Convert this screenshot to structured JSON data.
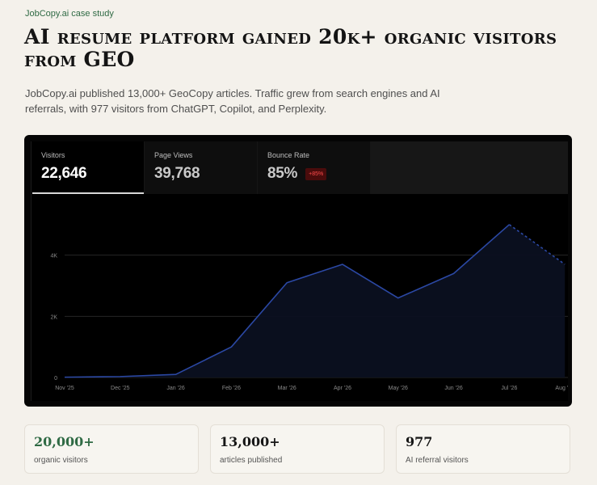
{
  "header": {
    "eyebrow": "JobCopy.ai case study",
    "title": "AI resume platform gained 20k+ organic visitors from GEO",
    "lede": "JobCopy.ai published 13,000+ GeoCopy articles. Traffic grew from search engines and AI referrals, with 977 visitors from ChatGPT, Copilot, and Perplexity."
  },
  "metrics": [
    {
      "label": "Visitors",
      "value": "22,646"
    },
    {
      "label": "Page Views",
      "value": "39,768"
    },
    {
      "label": "Bounce Rate",
      "value": "85%",
      "badge": "+85%"
    }
  ],
  "colors": {
    "accent": "#2f6a44",
    "line": "#2b48a4",
    "badge_text": "#ff4d4d",
    "badge_bg": "#4a0c0c"
  },
  "chart_data": {
    "type": "area",
    "x": [
      "Nov '25",
      "Dec '25",
      "Jan '26",
      "Feb '26",
      "Mar '26",
      "Apr '26",
      "May '26",
      "Jun '26",
      "Jul '26",
      "Aug '26"
    ],
    "values": [
      10,
      30,
      100,
      1000,
      3100,
      3700,
      2600,
      3400,
      5000,
      3700
    ],
    "projected_from_index": 8,
    "y_ticks": [
      {
        "v": 0,
        "label": "0"
      },
      {
        "v": 2000,
        "label": "2K"
      },
      {
        "v": 4000,
        "label": "4K"
      }
    ],
    "ylim": [
      0,
      6000
    ],
    "grid": true
  },
  "stats": [
    {
      "value": "20,000+",
      "label": "organic visitors"
    },
    {
      "value": "13,000+",
      "label": "articles published"
    },
    {
      "value": "977",
      "label": "AI referral visitors"
    }
  ]
}
